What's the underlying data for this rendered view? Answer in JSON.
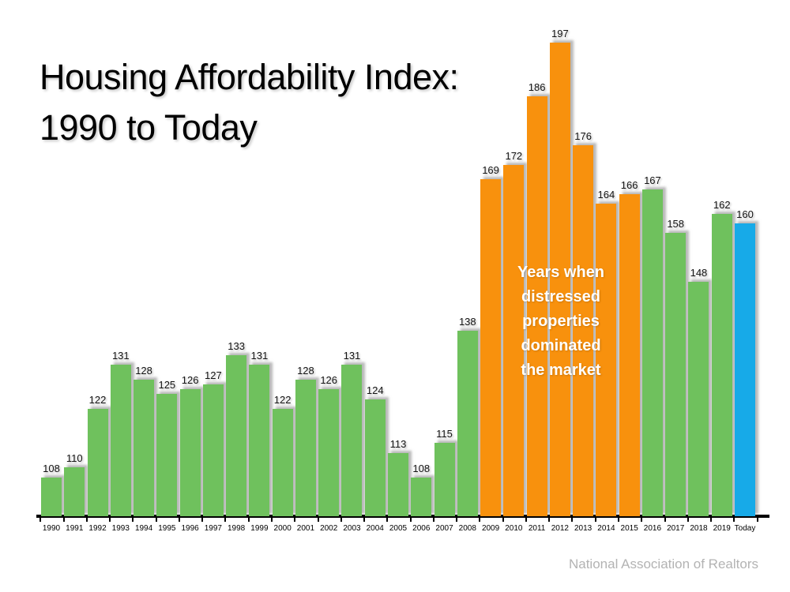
{
  "title": {
    "line1": "Housing Affordability Index:",
    "line2": "1990 to Today"
  },
  "annotation": {
    "text": "Years when distressed properties dominated the market"
  },
  "source": "National Association of Realtors",
  "chart_data": {
    "type": "bar",
    "title": "Housing Affordability Index: 1990 to Today",
    "xlabel": "",
    "ylabel": "Housing Affordability Index",
    "baseline_value": 100,
    "ylim": [
      100,
      200
    ],
    "grid": false,
    "legend": "none",
    "categories": [
      "1990",
      "1991",
      "1992",
      "1993",
      "1994",
      "1995",
      "1996",
      "1997",
      "1998",
      "1999",
      "2000",
      "2001",
      "2002",
      "2003",
      "2004",
      "2005",
      "2006",
      "2007",
      "2008",
      "2009",
      "2010",
      "2011",
      "2012",
      "2013",
      "2014",
      "2015",
      "2016",
      "2017",
      "2018",
      "2019",
      "Today"
    ],
    "values": [
      108,
      110,
      122,
      131,
      128,
      125,
      126,
      127,
      133,
      131,
      122,
      128,
      126,
      131,
      124,
      113,
      108,
      115,
      138,
      169,
      172,
      186,
      197,
      176,
      164,
      166,
      167,
      158,
      148,
      162,
      160
    ],
    "bar_colors": [
      "green",
      "green",
      "green",
      "green",
      "green",
      "green",
      "green",
      "green",
      "green",
      "green",
      "green",
      "green",
      "green",
      "green",
      "green",
      "green",
      "green",
      "green",
      "green",
      "orange",
      "orange",
      "orange",
      "orange",
      "orange",
      "orange",
      "orange",
      "green",
      "green",
      "green",
      "green",
      "blue"
    ],
    "palette": {
      "green": "#6FC15D",
      "orange": "#F8910D",
      "blue": "#17AAE8"
    },
    "annotation": "Years when distressed properties dominated the market",
    "source": "National Association of Realtors"
  }
}
